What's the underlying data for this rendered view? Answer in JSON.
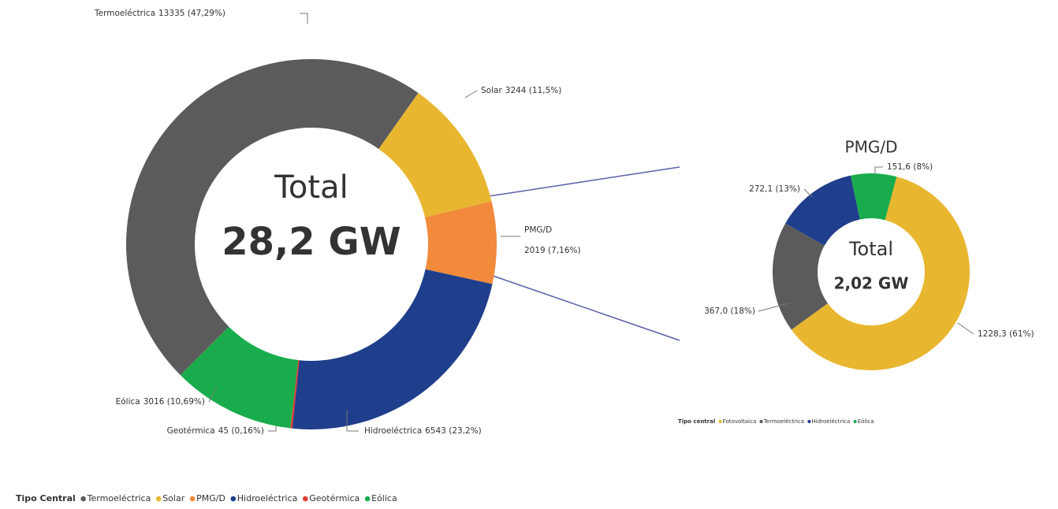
{
  "chart_data": [
    {
      "type": "donut",
      "center_text": [
        "Total",
        "28,2 GW"
      ],
      "categories": [
        "Termoeléctrica",
        "Solar",
        "PMG/D",
        "Hidroeléctrica",
        "Geotérmica",
        "Eólica"
      ],
      "values": [
        13335,
        3244,
        2019,
        6543,
        45,
        3016
      ],
      "value_labels": [
        "13335 (47,29%)",
        "3244 (11,5%)",
        "2019 (7,16%)",
        "6543 (23,2%)",
        "45 (0,16%)",
        "3016 (10,69%)"
      ],
      "colors": [
        "#5b5b5b",
        "#e9b630",
        "#f28a3c",
        "#1f3e8c",
        "#e03a2f",
        "#19ac4c"
      ],
      "legend_title": "Tipo Central"
    },
    {
      "type": "donut",
      "title": "PMG/D",
      "center_text": [
        "Total",
        "2,02 GW"
      ],
      "categories": [
        "Fotovoltaica",
        "Termoeléctrica",
        "Hidroeléctrica",
        "Eólica"
      ],
      "values": [
        1228.3,
        367.0,
        272.1,
        151.6
      ],
      "value_labels": [
        "1228,3 (61%)",
        "367,0 (18%)",
        "272,1 (13%)",
        "151,6 (8%)"
      ],
      "colors": [
        "#e9b630",
        "#5b5b5b",
        "#1f3e8c",
        "#19ac4c"
      ],
      "legend_title": "Tipo central"
    }
  ]
}
